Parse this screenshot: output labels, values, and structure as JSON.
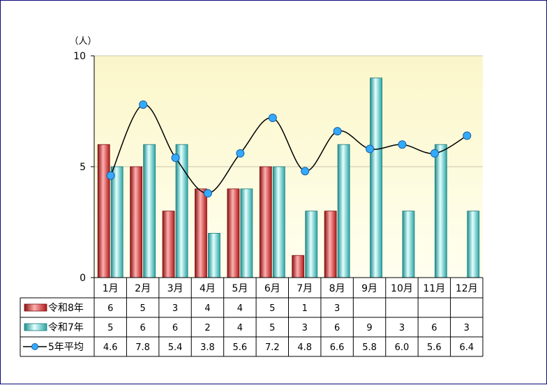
{
  "chart_data": {
    "type": "bar",
    "y_unit_label": "（人）",
    "ylim": [
      0,
      10
    ],
    "y_ticks": [
      0,
      5,
      10
    ],
    "grid": true,
    "categories": [
      "1月",
      "2月",
      "3月",
      "4月",
      "5月",
      "6月",
      "7月",
      "8月",
      "9月",
      "10月",
      "11月",
      "12月"
    ],
    "series": [
      {
        "name": "令和8年",
        "kind": "bar",
        "color": "#e03030",
        "values": [
          6,
          5,
          3,
          4,
          4,
          5,
          1,
          3,
          null,
          null,
          null,
          null
        ]
      },
      {
        "name": "令和7年",
        "kind": "bar",
        "color": "#40c0c0",
        "values": [
          5,
          6,
          6,
          2,
          4,
          5,
          3,
          6,
          9,
          3,
          6,
          3
        ]
      },
      {
        "name": "5年平均",
        "kind": "line",
        "color": "#000000",
        "marker_color": "#33aaff",
        "values": [
          4.6,
          7.8,
          5.4,
          3.8,
          5.6,
          7.2,
          4.8,
          6.6,
          5.8,
          6.0,
          5.6,
          6.4
        ],
        "labels": [
          "4.6",
          "7.8",
          "5.4",
          "3.8",
          "5.6",
          "7.2",
          "4.8",
          "6.6",
          "5.8",
          "6.0",
          "5.6",
          "6.4"
        ]
      }
    ],
    "data_table": true,
    "plot_background": [
      "#fbf6c9",
      "#fffff0"
    ]
  }
}
